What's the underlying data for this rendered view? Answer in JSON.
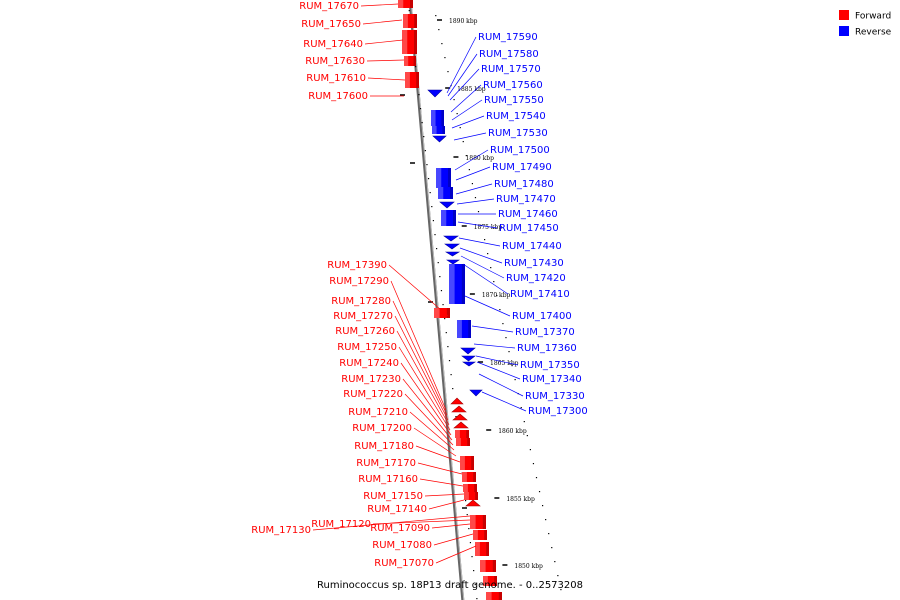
{
  "caption": "Ruminococcus sp. 18P13 draft genome. - 0..2573208",
  "legend": [
    {
      "label": "Forward",
      "color": "#ff0000"
    },
    {
      "label": "Reverse",
      "color": "#0000ff"
    }
  ],
  "colors": {
    "forward": "#ff0000",
    "reverse": "#0000ff",
    "backbone": "#555555"
  },
  "ticks": [
    "1890 kbp",
    "1885 kbp",
    "1880 kbp",
    "1875 kbp",
    "1870 kbp",
    "1865 kbp",
    "1860 kbp",
    "1855 kbp",
    "1850 kbp"
  ],
  "forward_genes_top": [
    "RUM_17670",
    "RUM_17650",
    "RUM_17640",
    "RUM_17630",
    "RUM_17610",
    "RUM_17600"
  ],
  "forward_genes_bottom": [
    "RUM_17390",
    "RUM_17290",
    "RUM_17280",
    "RUM_17270",
    "RUM_17260",
    "RUM_17250",
    "RUM_17240",
    "RUM_17230",
    "RUM_17220",
    "RUM_17210",
    "RUM_17200",
    "RUM_17180",
    "RUM_17170",
    "RUM_17160",
    "RUM_17150",
    "RUM_17140",
    "RUM_17130",
    "RUM_17120",
    "RUM_17090",
    "RUM_17080",
    "RUM_17070"
  ],
  "reverse_genes": [
    "RUM_17590",
    "RUM_17580",
    "RUM_17570",
    "RUM_17560",
    "RUM_17550",
    "RUM_17540",
    "RUM_17530",
    "RUM_17500",
    "RUM_17490",
    "RUM_17480",
    "RUM_17470",
    "RUM_17460",
    "RUM_17450",
    "RUM_17440",
    "RUM_17430",
    "RUM_17420",
    "RUM_17410",
    "RUM_17400",
    "RUM_17370",
    "RUM_17360",
    "RUM_17350",
    "RUM_17340",
    "RUM_17330",
    "RUM_17300"
  ]
}
